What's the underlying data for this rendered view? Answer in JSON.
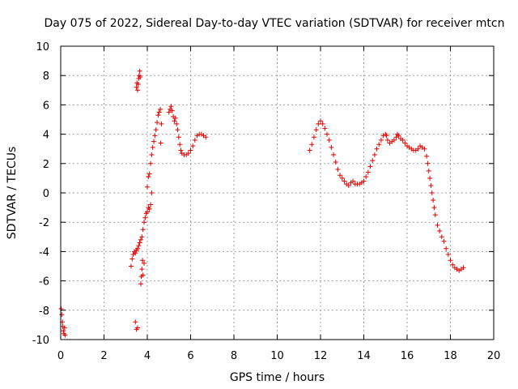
{
  "chart_data": {
    "type": "scatter",
    "title": "Day 075 of 2022, Sidereal Day-to-day VTEC variation (SDTVAR) for receiver mtcn",
    "xlabel": "GPS time / hours",
    "ylabel": "SDTVAR / TECUs",
    "xlim": [
      0,
      20
    ],
    "ylim": [
      -10,
      10
    ],
    "xticks": [
      0,
      2,
      4,
      6,
      8,
      10,
      12,
      14,
      16,
      18,
      20
    ],
    "yticks": [
      -10,
      -8,
      -6,
      -4,
      -2,
      0,
      2,
      4,
      6,
      8,
      10
    ],
    "grid": true,
    "marker": "+",
    "color": "#e00000",
    "series": [
      {
        "name": "SDTVAR",
        "points": [
          [
            0.02,
            -7.9
          ],
          [
            0.05,
            -8.3
          ],
          [
            0.08,
            -8.8
          ],
          [
            0.1,
            -9.1
          ],
          [
            0.12,
            -9.4
          ],
          [
            0.15,
            -9.6
          ],
          [
            0.18,
            -9.2
          ],
          [
            0.2,
            -9.7
          ],
          [
            3.25,
            -5.0
          ],
          [
            3.3,
            -4.5
          ],
          [
            3.35,
            -4.2
          ],
          [
            3.4,
            -4.0
          ],
          [
            3.45,
            -4.1
          ],
          [
            3.5,
            -3.9
          ],
          [
            3.55,
            -3.8
          ],
          [
            3.6,
            -3.6
          ],
          [
            3.65,
            -3.4
          ],
          [
            3.7,
            -3.2
          ],
          [
            3.75,
            -3.0
          ],
          [
            3.8,
            -2.5
          ],
          [
            3.85,
            -2.0
          ],
          [
            3.9,
            -1.7
          ],
          [
            3.95,
            -1.4
          ],
          [
            4.0,
            -1.3
          ],
          [
            4.05,
            -1.0
          ],
          [
            4.1,
            -1.1
          ],
          [
            4.15,
            -0.8
          ],
          [
            4.2,
            0.0
          ],
          [
            3.7,
            -6.2
          ],
          [
            3.72,
            -5.7
          ],
          [
            3.75,
            -5.2
          ],
          [
            3.78,
            -4.6
          ],
          [
            3.8,
            -5.6
          ],
          [
            3.85,
            -4.8
          ],
          [
            3.45,
            -8.8
          ],
          [
            3.5,
            -9.3
          ],
          [
            3.55,
            -9.2
          ],
          [
            3.5,
            7.2
          ],
          [
            3.52,
            7.5
          ],
          [
            3.55,
            7.0
          ],
          [
            3.58,
            7.4
          ],
          [
            3.6,
            7.8
          ],
          [
            3.62,
            8.0
          ],
          [
            3.65,
            8.3
          ],
          [
            3.67,
            7.9
          ],
          [
            4.0,
            0.4
          ],
          [
            4.05,
            1.1
          ],
          [
            4.1,
            1.3
          ],
          [
            4.15,
            2.0
          ],
          [
            4.2,
            2.6
          ],
          [
            4.25,
            3.1
          ],
          [
            4.3,
            3.5
          ],
          [
            4.35,
            3.9
          ],
          [
            4.4,
            4.3
          ],
          [
            4.45,
            4.8
          ],
          [
            4.5,
            5.3
          ],
          [
            4.55,
            5.5
          ],
          [
            4.6,
            5.7
          ],
          [
            4.62,
            3.4
          ],
          [
            4.65,
            4.7
          ],
          [
            5.0,
            5.5
          ],
          [
            5.05,
            5.7
          ],
          [
            5.1,
            5.9
          ],
          [
            5.15,
            5.6
          ],
          [
            5.2,
            5.2
          ],
          [
            5.25,
            4.9
          ],
          [
            5.3,
            5.1
          ],
          [
            5.35,
            4.7
          ],
          [
            5.4,
            4.3
          ],
          [
            5.45,
            3.8
          ],
          [
            5.5,
            3.3
          ],
          [
            5.55,
            2.9
          ],
          [
            5.6,
            2.7
          ],
          [
            5.7,
            2.6
          ],
          [
            5.8,
            2.6
          ],
          [
            5.9,
            2.7
          ],
          [
            6.0,
            2.9
          ],
          [
            6.1,
            3.2
          ],
          [
            6.2,
            3.6
          ],
          [
            6.3,
            3.9
          ],
          [
            6.4,
            4.0
          ],
          [
            6.5,
            4.0
          ],
          [
            6.6,
            3.9
          ],
          [
            6.7,
            3.8
          ],
          [
            11.5,
            2.9
          ],
          [
            11.6,
            3.3
          ],
          [
            11.7,
            3.8
          ],
          [
            11.8,
            4.3
          ],
          [
            11.9,
            4.7
          ],
          [
            12.0,
            4.9
          ],
          [
            12.1,
            4.7
          ],
          [
            12.2,
            4.4
          ],
          [
            12.3,
            4.0
          ],
          [
            12.4,
            3.6
          ],
          [
            12.5,
            3.1
          ],
          [
            12.6,
            2.6
          ],
          [
            12.7,
            2.1
          ],
          [
            12.8,
            1.6
          ],
          [
            12.9,
            1.2
          ],
          [
            13.0,
            1.0
          ],
          [
            13.1,
            0.8
          ],
          [
            13.2,
            0.6
          ],
          [
            13.3,
            0.5
          ],
          [
            13.4,
            0.7
          ],
          [
            13.5,
            0.8
          ],
          [
            13.6,
            0.6
          ],
          [
            13.7,
            0.6
          ],
          [
            13.8,
            0.6
          ],
          [
            13.9,
            0.7
          ],
          [
            14.0,
            0.8
          ],
          [
            14.1,
            1.1
          ],
          [
            14.2,
            1.4
          ],
          [
            14.3,
            1.8
          ],
          [
            14.4,
            2.2
          ],
          [
            14.5,
            2.6
          ],
          [
            14.6,
            3.0
          ],
          [
            14.7,
            3.3
          ],
          [
            14.8,
            3.6
          ],
          [
            14.9,
            3.9
          ],
          [
            15.0,
            4.0
          ],
          [
            15.05,
            3.9
          ],
          [
            15.1,
            3.6
          ],
          [
            15.2,
            3.4
          ],
          [
            15.3,
            3.5
          ],
          [
            15.4,
            3.6
          ],
          [
            15.5,
            3.8
          ],
          [
            15.55,
            4.0
          ],
          [
            15.6,
            3.9
          ],
          [
            15.7,
            3.7
          ],
          [
            15.8,
            3.6
          ],
          [
            15.9,
            3.4
          ],
          [
            16.0,
            3.2
          ],
          [
            16.1,
            3.1
          ],
          [
            16.2,
            3.0
          ],
          [
            16.3,
            2.9
          ],
          [
            16.4,
            2.9
          ],
          [
            16.5,
            3.0
          ],
          [
            16.6,
            3.2
          ],
          [
            16.7,
            3.1
          ],
          [
            16.8,
            3.0
          ],
          [
            16.9,
            2.5
          ],
          [
            16.95,
            2.0
          ],
          [
            17.0,
            1.5
          ],
          [
            17.05,
            1.0
          ],
          [
            17.1,
            0.5
          ],
          [
            17.15,
            0.0
          ],
          [
            17.2,
            -0.5
          ],
          [
            17.25,
            -1.0
          ],
          [
            17.3,
            -1.5
          ],
          [
            17.4,
            -2.2
          ],
          [
            17.5,
            -2.6
          ],
          [
            17.6,
            -3.0
          ],
          [
            17.7,
            -3.3
          ],
          [
            17.8,
            -3.8
          ],
          [
            17.9,
            -4.2
          ],
          [
            18.0,
            -4.6
          ],
          [
            18.1,
            -4.9
          ],
          [
            18.2,
            -5.1
          ],
          [
            18.3,
            -5.2
          ],
          [
            18.4,
            -5.3
          ],
          [
            18.5,
            -5.2
          ],
          [
            18.6,
            -5.1
          ]
        ]
      }
    ]
  }
}
